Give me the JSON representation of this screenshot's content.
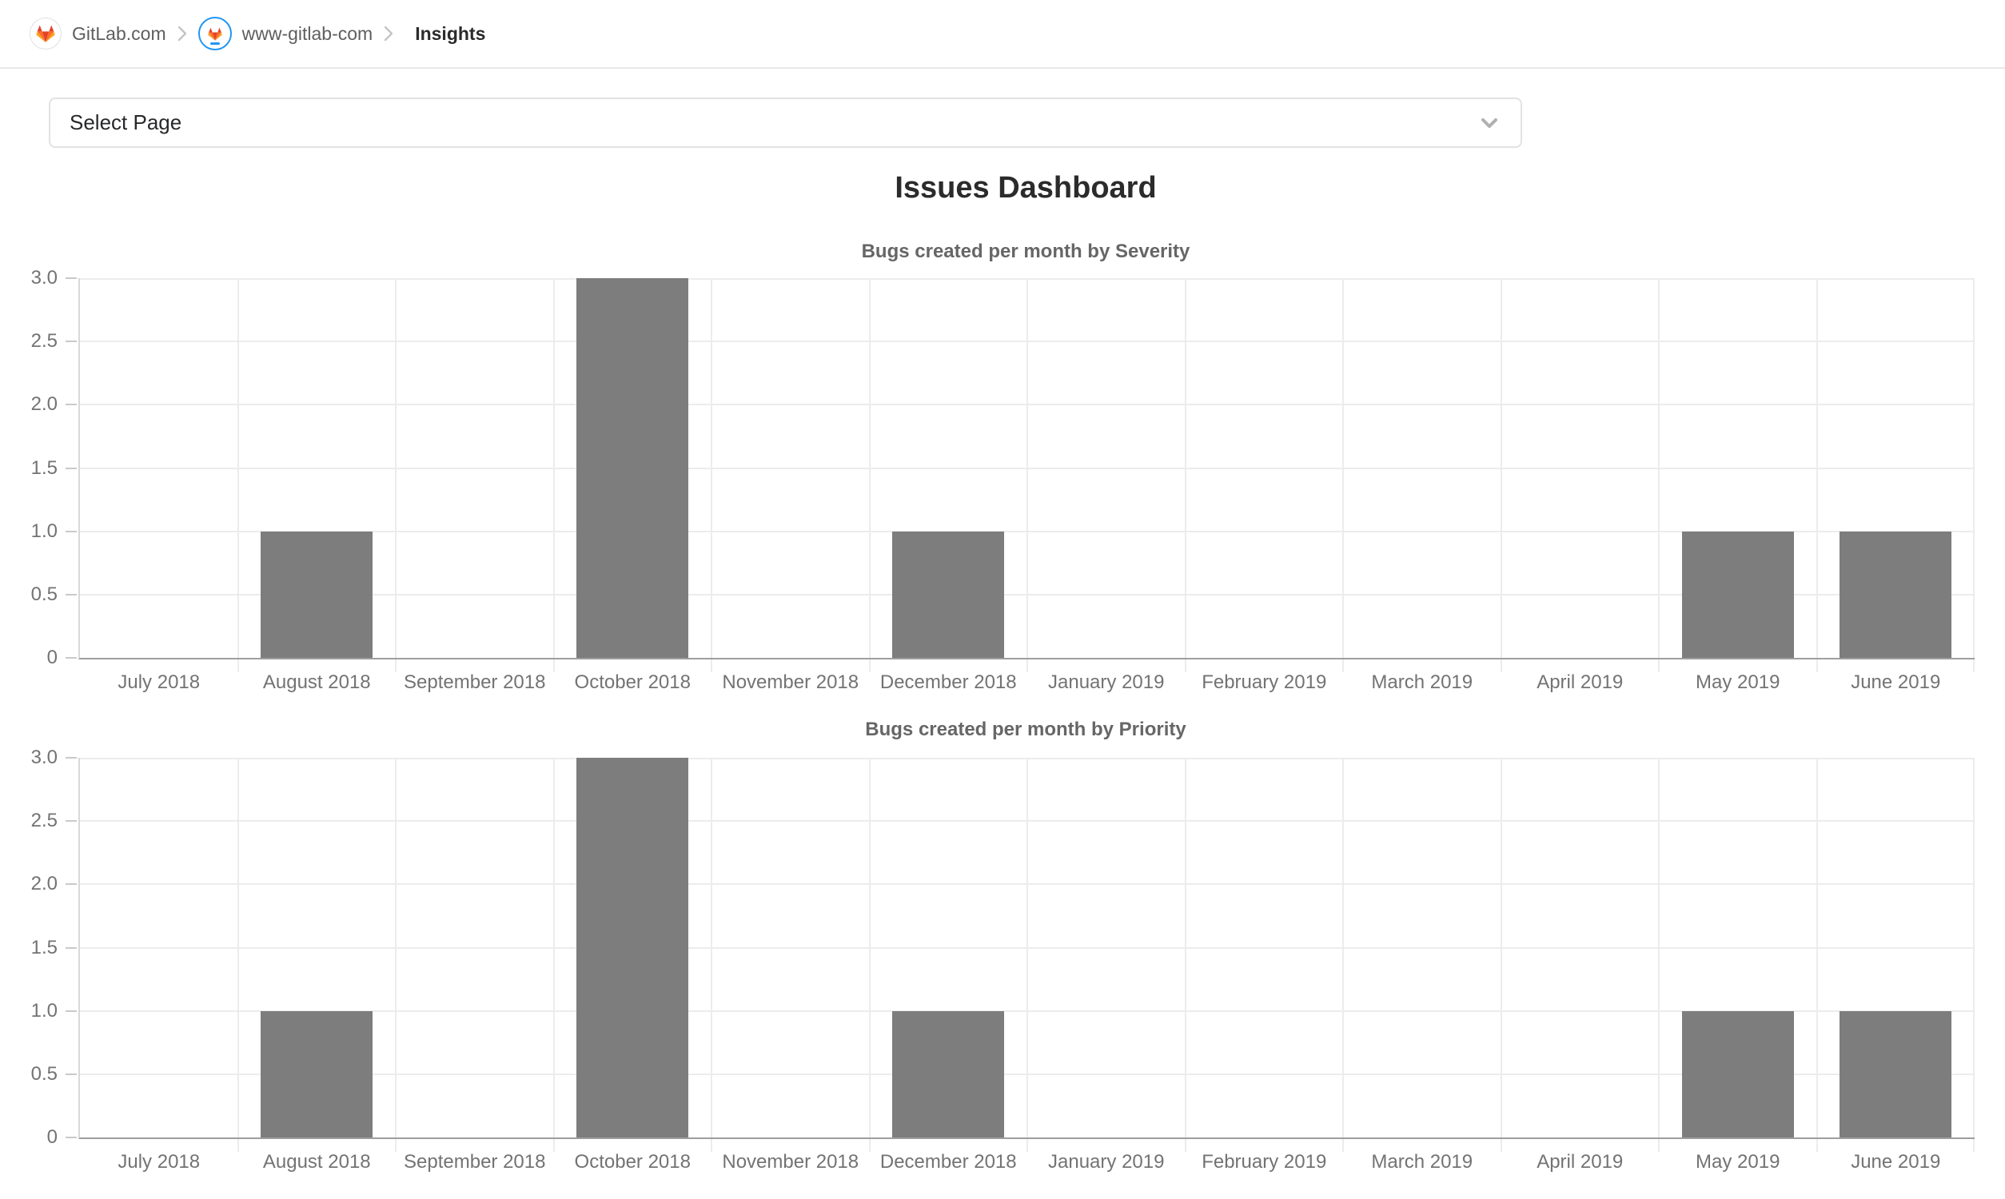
{
  "breadcrumb": {
    "separator_icon": "chevron-right-icon",
    "items": [
      {
        "label": "GitLab.com",
        "icon": "gitlab-tanuki-avatar"
      },
      {
        "label": "www-gitlab-com",
        "icon": "project-avatar"
      },
      {
        "label": "Insights",
        "current": true
      }
    ]
  },
  "page_selector": {
    "value": "Select Page",
    "icon": "chevron-down-icon"
  },
  "page_title": "Issues Dashboard",
  "colors": {
    "bar": "#7d7d7d",
    "grid": "#ececec",
    "x_axis_line": "#9e9e9e",
    "y_axis_line": "#d8d8d8",
    "tick": "#c9c9c9",
    "axis_label": "#737373",
    "chart_title": "#666666",
    "text_dark": "#2b2b2b",
    "breadcrumb_text": "#5e5e5e",
    "separator": "#c4c4c4",
    "input_border": "#e2e2e2",
    "avatar_ring_blue": "#2196f3",
    "tanuki_red": "#e24329",
    "tanuki_orange": "#fc6d26",
    "tanuki_yellow": "#fca326"
  },
  "chart_data": [
    {
      "type": "bar",
      "title": "Bugs created per month by Severity",
      "categories": [
        "July 2018",
        "August 2018",
        "September 2018",
        "October 2018",
        "November 2018",
        "December 2018",
        "January 2019",
        "February 2019",
        "March 2019",
        "April 2019",
        "May 2019",
        "June 2019"
      ],
      "values": [
        0,
        1,
        0,
        3,
        0,
        1,
        0,
        0,
        0,
        0,
        1,
        1
      ],
      "xlabel": "",
      "ylabel": "",
      "ylim": [
        0,
        3
      ],
      "ytick_labels": [
        "3.0",
        "2.5",
        "2.0",
        "1.5",
        "1.0",
        "0.5",
        "0"
      ],
      "grid": true,
      "legend": "none",
      "bar_color": "#7d7d7d"
    },
    {
      "type": "bar",
      "title": "Bugs created per month by Priority",
      "categories": [
        "July 2018",
        "August 2018",
        "September 2018",
        "October 2018",
        "November 2018",
        "December 2018",
        "January 2019",
        "February 2019",
        "March 2019",
        "April 2019",
        "May 2019",
        "June 2019"
      ],
      "values": [
        0,
        1,
        0,
        3,
        0,
        1,
        0,
        0,
        0,
        0,
        1,
        1
      ],
      "xlabel": "",
      "ylabel": "",
      "ylim": [
        0,
        3
      ],
      "ytick_labels": [
        "3.0",
        "2.5",
        "2.0",
        "1.5",
        "1.0",
        "0.5",
        "0"
      ],
      "grid": true,
      "legend": "none",
      "bar_color": "#7d7d7d"
    }
  ]
}
